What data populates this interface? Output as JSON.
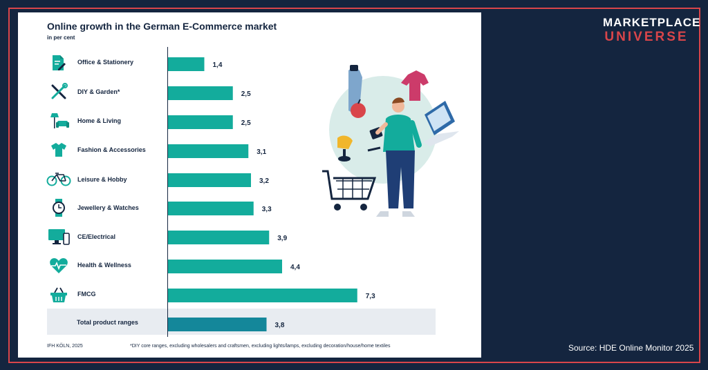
{
  "brand": {
    "line1": "MARKETPLACE",
    "line2": "UNIVERSE"
  },
  "source_right": "Source: HDE Online Monitor 2025",
  "colors": {
    "bar": "#13ac9c",
    "total_bar": "#14879a",
    "text": "#14253f",
    "accent": "#d9454a",
    "background": "#14253f"
  },
  "chart_data": {
    "type": "bar",
    "orientation": "horizontal",
    "title": "Online growth in the German E-Commerce market",
    "subtitle": "in per cent",
    "categories": [
      "Office & Stationery",
      "DIY & Garden*",
      "Home & Living",
      "Fashion & Accessories",
      "Leisure & Hobby",
      "Jewellery & Watches",
      "CE/Electrical",
      "Health & Wellness",
      "FMCG",
      "Total product ranges"
    ],
    "values": [
      1.4,
      2.5,
      2.5,
      3.1,
      3.2,
      3.3,
      3.9,
      4.4,
      7.3,
      3.8
    ],
    "value_labels": [
      "1,4",
      "2,5",
      "2,5",
      "3,1",
      "3,2",
      "3,3",
      "3,9",
      "4,4",
      "7,3",
      "3,8"
    ],
    "icons": [
      "document-pen-icon",
      "tools-icon",
      "sofa-lamp-icon",
      "tshirt-icon",
      "bicycle-icon",
      "watch-icon",
      "monitor-phone-icon",
      "heart-pulse-icon",
      "basket-icon",
      ""
    ],
    "xlim": [
      0,
      7.5
    ],
    "grid": false,
    "source": "IFH KÖLN, 2025",
    "footnote": "*DIY core ranges, excluding wholesalers and craftsmen, excluding lights/lamps, excluding decoration/house/home textiles"
  }
}
